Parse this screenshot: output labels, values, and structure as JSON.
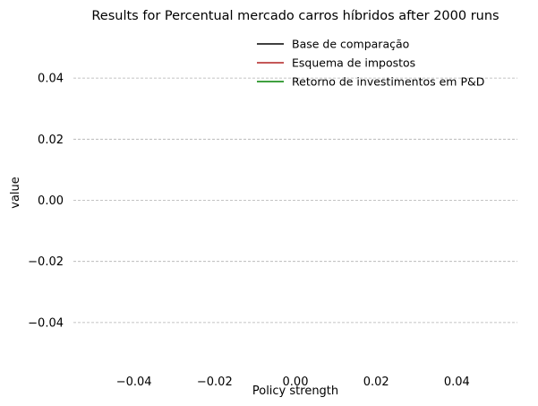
{
  "chart_data": {
    "type": "line",
    "title": "Results for Percentual mercado carros híbridos after 2000 runs",
    "xlabel": "Policy strength",
    "ylabel": "value",
    "xlim": [
      -0.055,
      0.055
    ],
    "ylim": [
      -0.055,
      0.055
    ],
    "x_ticks": [
      -0.04,
      -0.02,
      0.0,
      0.02,
      0.04
    ],
    "x_tick_labels": [
      "−0.04",
      "−0.02",
      "0.00",
      "0.02",
      "0.04"
    ],
    "y_ticks": [
      0.04,
      0.02,
      0.0,
      -0.02,
      -0.04
    ],
    "y_tick_labels": [
      "0.04",
      "0.02",
      "0.00",
      "−0.02",
      "−0.04"
    ],
    "grid": "horizontal-dashed",
    "legend_position": "top-right",
    "series": [
      {
        "name": "Base de comparação",
        "color": "#000000",
        "x": [],
        "y": []
      },
      {
        "name": "Esquema de impostos",
        "color": "#b22222",
        "x": [],
        "y": []
      },
      {
        "name": "Retorno de investimentos em P&D",
        "color": "#008000",
        "x": [],
        "y": []
      }
    ]
  }
}
